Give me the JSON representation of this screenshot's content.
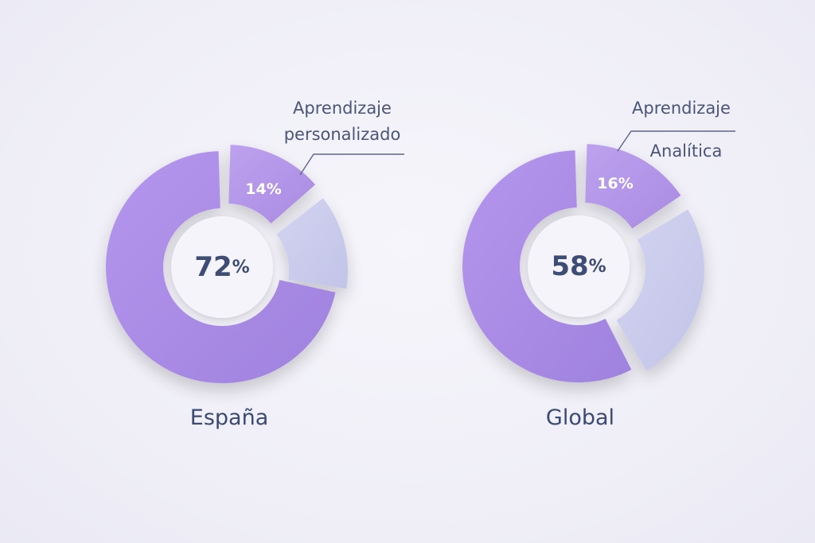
{
  "colors": {
    "primary_segment": "#a98ae6",
    "secondary_segment": "#b79cea",
    "tertiary_segment": "#c9cbec",
    "text_dark": "#3e4d74",
    "background": "#efeef7"
  },
  "chart_data": [
    {
      "type": "pie",
      "title": "España",
      "center_label": "72%",
      "slices": [
        {
          "value": 72,
          "label": ""
        },
        {
          "value": 14,
          "label": "14%",
          "callout": [
            "Aprendizaje",
            "personalizado"
          ]
        },
        {
          "value": 14,
          "label": ""
        }
      ]
    },
    {
      "type": "pie",
      "title": "Global",
      "center_label": "58%",
      "slices": [
        {
          "value": 58,
          "label": ""
        },
        {
          "value": 16,
          "label": "16%",
          "callout": [
            "Aprendizaje"
          ]
        },
        {
          "value": 26,
          "label": ""
        }
      ],
      "extra_labels": [
        "Analítica"
      ]
    }
  ]
}
